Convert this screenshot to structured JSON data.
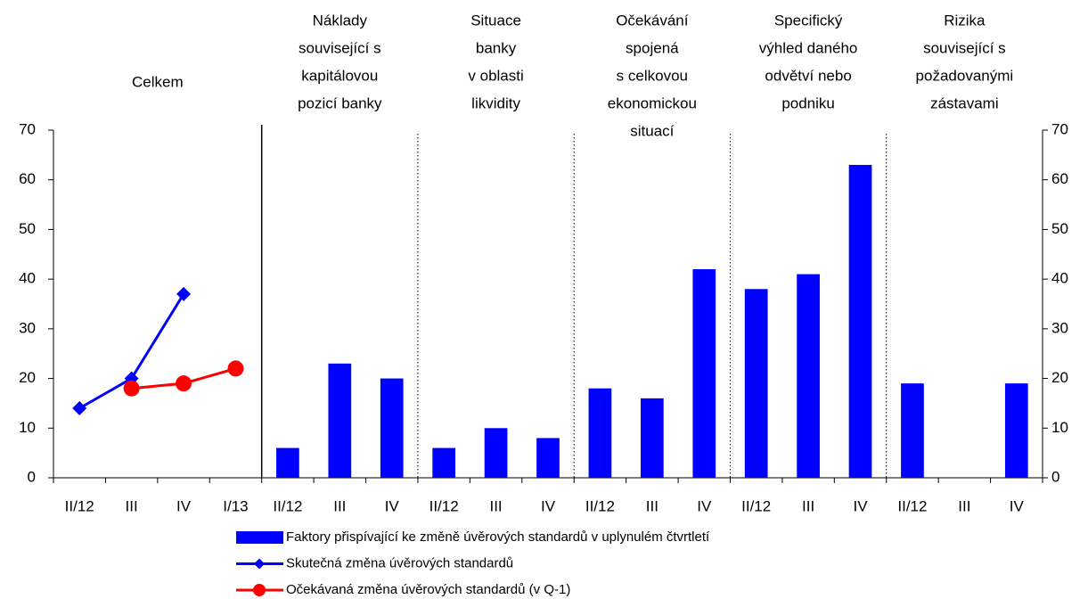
{
  "chart_data": {
    "type": "bar",
    "groups": [
      [
        "Celkem"
      ],
      [
        "Náklady",
        "související s",
        "kapitálovou",
        "pozicí banky"
      ],
      [
        "Situace",
        "banky",
        "v oblasti",
        "likvidity"
      ],
      [
        "Očekávání",
        "spojená",
        "s celkovou",
        "ekonomickou",
        "situací"
      ],
      [
        "Specifický",
        "výhled daného",
        "odvětví nebo",
        "podniku"
      ],
      [
        "Rizika",
        "související s",
        "požadovanými",
        "zástavami"
      ]
    ],
    "categories": [
      "II/12",
      "III",
      "IV",
      "I/13",
      "II/12",
      "III",
      "IV",
      "II/12",
      "III",
      "IV",
      "II/12",
      "III",
      "IV",
      "II/12",
      "III",
      "IV",
      "II/12",
      "III",
      "IV"
    ],
    "series": [
      {
        "name": "Faktory přispívající ke změně úvěrových standardů v uplynulém čtvrtletí",
        "type": "bar",
        "color": "#0000ff",
        "values": [
          null,
          null,
          null,
          null,
          6,
          23,
          20,
          6,
          10,
          8,
          18,
          16,
          42,
          38,
          41,
          63,
          19,
          0,
          19
        ]
      },
      {
        "name": "Skutečná změna úvěrových standardů",
        "type": "line",
        "marker": "diamond",
        "color": "#0000ff",
        "values": [
          14,
          20,
          37,
          null,
          null,
          null,
          null,
          null,
          null,
          null,
          null,
          null,
          null,
          null,
          null,
          null,
          null,
          null,
          null
        ]
      },
      {
        "name": "Očekávaná změna úvěrových standardů (v Q-1)",
        "type": "line",
        "marker": "circle",
        "color": "#ff0000",
        "values": [
          null,
          18,
          19,
          22,
          null,
          null,
          null,
          null,
          null,
          null,
          null,
          null,
          null,
          null,
          null,
          null,
          null,
          null,
          null
        ]
      }
    ],
    "ylim": [
      0,
      70
    ],
    "yticks": [
      0,
      10,
      20,
      30,
      40,
      50,
      60,
      70
    ],
    "y2lim": [
      0,
      70
    ],
    "y2ticks": [
      0,
      10,
      20,
      30,
      40,
      50,
      60,
      70
    ]
  }
}
